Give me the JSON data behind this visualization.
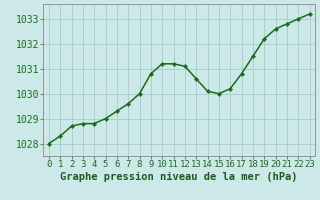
{
  "x": [
    0,
    1,
    2,
    3,
    4,
    5,
    6,
    7,
    8,
    9,
    10,
    11,
    12,
    13,
    14,
    15,
    16,
    17,
    18,
    19,
    20,
    21,
    22,
    23
  ],
  "y": [
    1028.0,
    1028.3,
    1028.7,
    1028.8,
    1028.8,
    1029.0,
    1029.3,
    1029.6,
    1030.0,
    1030.8,
    1031.2,
    1031.2,
    1031.1,
    1030.6,
    1030.1,
    1030.0,
    1030.2,
    1030.8,
    1031.5,
    1032.2,
    1032.6,
    1032.8,
    1033.0,
    1033.2
  ],
  "line_color": "#1a6e1a",
  "marker_color": "#1a6e1a",
  "bg_color": "#cce8e8",
  "grid_color": "#aad0d0",
  "axis_label_color": "#1a5c1a",
  "tick_label_color": "#1a6e1a",
  "xlabel": "Graphe pression niveau de la mer (hPa)",
  "ylim": [
    1027.5,
    1033.6
  ],
  "yticks": [
    1028,
    1029,
    1030,
    1031,
    1032,
    1033
  ],
  "xticks": [
    0,
    1,
    2,
    3,
    4,
    5,
    6,
    7,
    8,
    9,
    10,
    11,
    12,
    13,
    14,
    15,
    16,
    17,
    18,
    19,
    20,
    21,
    22,
    23
  ],
  "xlabel_fontsize": 7.5,
  "tick_fontsize": 6.5,
  "ytick_fontsize": 7.0
}
